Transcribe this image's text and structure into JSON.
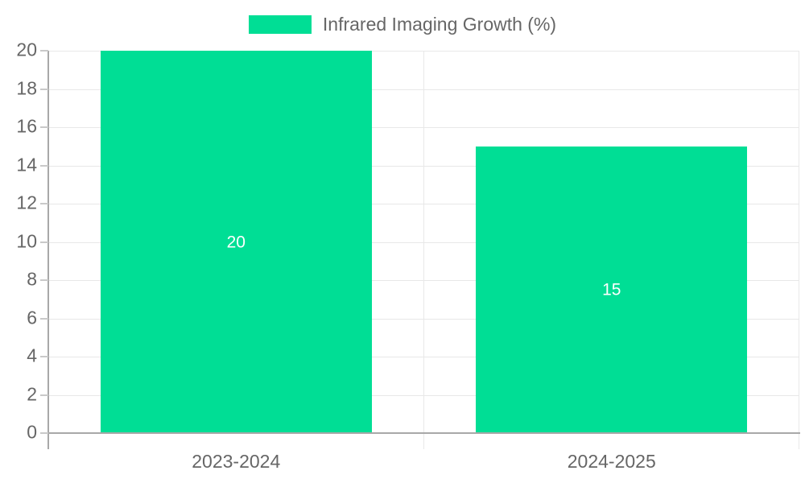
{
  "chart_data": {
    "type": "bar",
    "categories": [
      "2023-2024",
      "2024-2025"
    ],
    "series": [
      {
        "name": "Infrared Imaging Growth (%)",
        "values": [
          20,
          15
        ]
      }
    ],
    "legend": {
      "position": "top",
      "label": "Infrared Imaging Growth (%)"
    },
    "bar_value_labels": [
      "20",
      "15"
    ],
    "xlabel": "",
    "ylabel": "",
    "ylim": [
      0,
      20
    ],
    "ytick_step": 2,
    "ytick_labels": [
      "0",
      "2",
      "4",
      "6",
      "8",
      "10",
      "12",
      "14",
      "16",
      "18",
      "20"
    ],
    "grid": true
  },
  "colors": {
    "bar": "#00DE95",
    "bar_label": "#ffffff",
    "legend_text": "#666666",
    "axis_text": "#666666",
    "axis_line": "#a8a8a8",
    "gridline": "#e8e8e8",
    "tick": "#c9c9c9",
    "background": "#ffffff"
  }
}
